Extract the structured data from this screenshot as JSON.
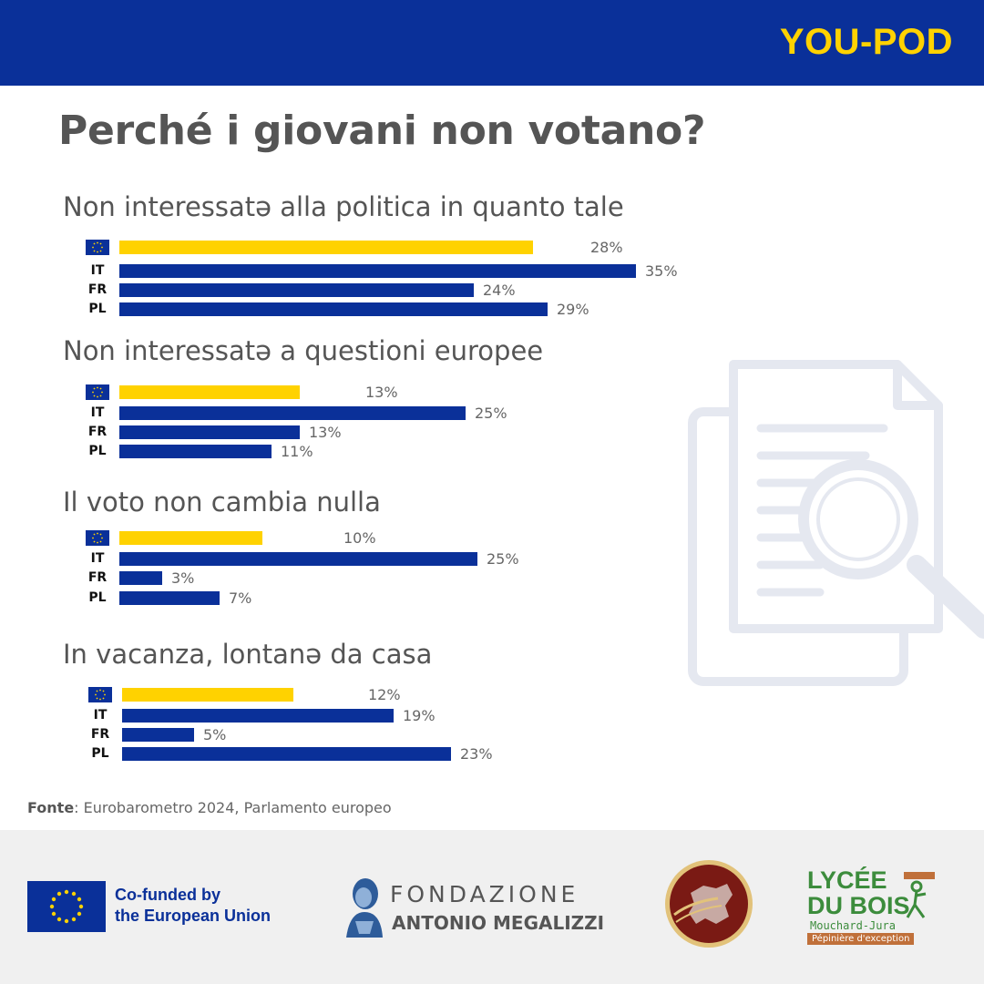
{
  "header": {
    "brand": "YOU-POD",
    "title": "Perché i giovani non votano?"
  },
  "colors": {
    "navy": "#0a3099",
    "yellow": "#ffd200",
    "text": "#555555"
  },
  "chart_data": {
    "type": "bar",
    "orientation": "horizontal",
    "series_names": [
      "EU",
      "IT",
      "FR",
      "PL"
    ],
    "country_labels": [
      "IT",
      "FR",
      "PL"
    ],
    "eu_icon": "eu-flag-icon",
    "unit": "%",
    "groups": [
      {
        "title": "Non interessatə alla politica in quanto tale",
        "values": [
          28,
          35,
          24,
          29
        ]
      },
      {
        "title": "Non interessatə a questioni europee",
        "values": [
          13,
          25,
          13,
          11
        ]
      },
      {
        "title": "Il voto non cambia nulla",
        "values": [
          10,
          25,
          3,
          7
        ]
      },
      {
        "title": "In vacanza, lontanə da casa",
        "values": [
          12,
          19,
          5,
          23
        ]
      }
    ]
  },
  "source": {
    "label": "Fonte",
    "text": ": Eurobarometro 2024, Parlamento europeo"
  },
  "footer": {
    "eu_line1": "Co-funded by",
    "eu_line2": "the European Union",
    "fam_line1": "FONDAZIONE",
    "fam_line2": "ANTONIO MEGALIZZI",
    "lycee_line1": "LYCÉE",
    "lycee_line2": "DU BOIS",
    "lycee_line3": "Mouchard-Jura",
    "lycee_line4": "Pépinière d'exception"
  }
}
